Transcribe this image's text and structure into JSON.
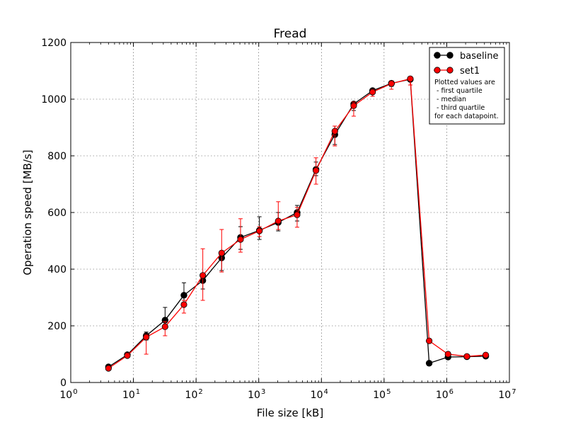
{
  "chart_data": {
    "type": "line",
    "title": "Fread",
    "xlabel": "File size [kB]",
    "ylabel": "Operation speed [MB/s]",
    "x_scale": "log",
    "xlim": [
      1,
      10000000
    ],
    "ylim": [
      0,
      1200
    ],
    "y_ticks": [
      0,
      200,
      400,
      600,
      800,
      1000,
      1200
    ],
    "x_tick_base": "10",
    "x_tick_exponents": [
      "0",
      "1",
      "2",
      "3",
      "4",
      "5",
      "6",
      "7"
    ],
    "grid": true,
    "legend_position": "top-right",
    "x": [
      4,
      8,
      16,
      32,
      64,
      128,
      256,
      512,
      1024,
      2048,
      4096,
      8192,
      16384,
      32768,
      65536,
      131072,
      262144,
      524288,
      1048576,
      2097152,
      4194304
    ],
    "series": [
      {
        "name": "baseline",
        "color": "#000000",
        "median": [
          55,
          98,
          165,
          220,
          308,
          360,
          440,
          512,
          537,
          565,
          600,
          752,
          875,
          983,
          1030,
          1056,
          1070,
          68,
          90,
          91,
          93
        ],
        "q1": [
          48,
          90,
          150,
          195,
          280,
          330,
          395,
          470,
          505,
          535,
          570,
          730,
          840,
          960,
          1020,
          1045,
          1050,
          64,
          86,
          88,
          89
        ],
        "q3": [
          62,
          106,
          178,
          265,
          352,
          385,
          465,
          550,
          585,
          600,
          625,
          778,
          905,
          990,
          1035,
          1065,
          1080,
          72,
          95,
          96,
          97
        ]
      },
      {
        "name": "set1",
        "color": "#ff0000",
        "median": [
          50,
          95,
          160,
          197,
          275,
          378,
          457,
          505,
          535,
          570,
          592,
          748,
          887,
          977,
          1025,
          1055,
          1072,
          147,
          100,
          92,
          97
        ],
        "q1": [
          45,
          88,
          100,
          165,
          245,
          290,
          390,
          460,
          515,
          540,
          548,
          700,
          835,
          940,
          1010,
          1035,
          1050,
          140,
          95,
          88,
          93
        ],
        "q3": [
          56,
          105,
          170,
          215,
          290,
          472,
          540,
          578,
          550,
          638,
          618,
          793,
          905,
          990,
          1035,
          1065,
          1080,
          155,
          107,
          97,
          100
        ]
      }
    ],
    "legend_note": [
      "Plotted values are",
      " - first quartile",
      " - median",
      " - third quartile",
      "for each datapoint."
    ]
  }
}
